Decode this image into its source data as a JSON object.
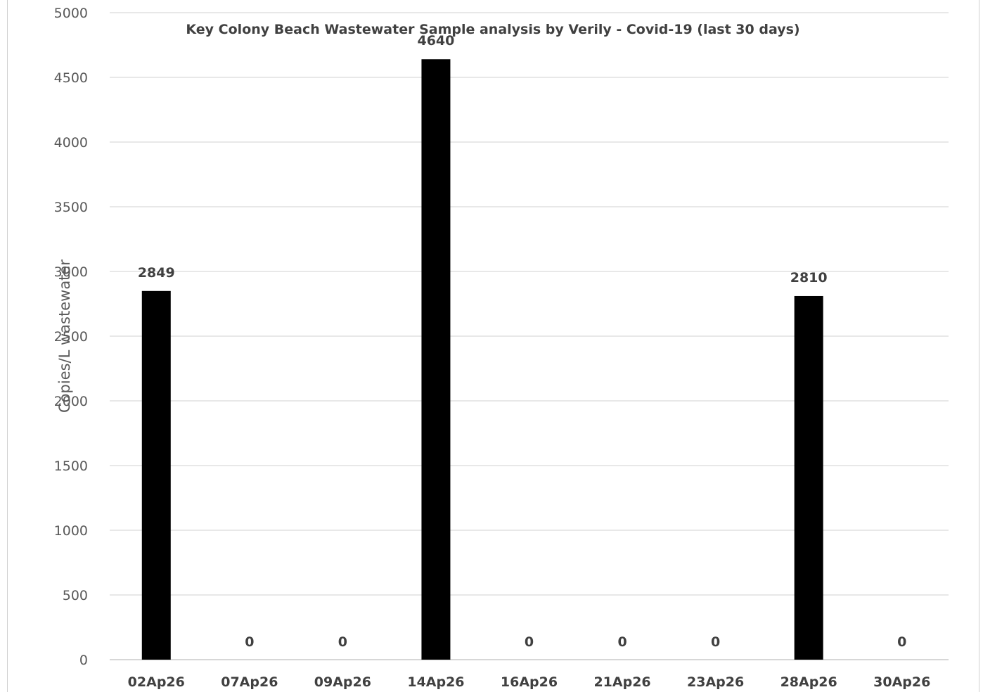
{
  "chart_data": {
    "type": "bar",
    "title": "Key Colony Beach Wastewater Sample analysis by Verily - Covid-19 (last 30 days)",
    "xlabel": "",
    "ylabel": "Copies/L wastewater",
    "categories": [
      "02Ap26",
      "07Ap26",
      "09Ap26",
      "14Ap26",
      "16Ap26",
      "21Ap26",
      "23Ap26",
      "28Ap26",
      "30Ap26"
    ],
    "values": [
      2849,
      0,
      0,
      4640,
      0,
      0,
      0,
      2810,
      0
    ],
    "ylim": [
      0,
      5000
    ],
    "yticks": [
      0,
      500,
      1000,
      1500,
      2000,
      2500,
      3000,
      3500,
      4000,
      4500,
      5000
    ],
    "grid": true,
    "legend": "none",
    "bar_color": "#000000",
    "grid_color": "#d9d9d9"
  }
}
